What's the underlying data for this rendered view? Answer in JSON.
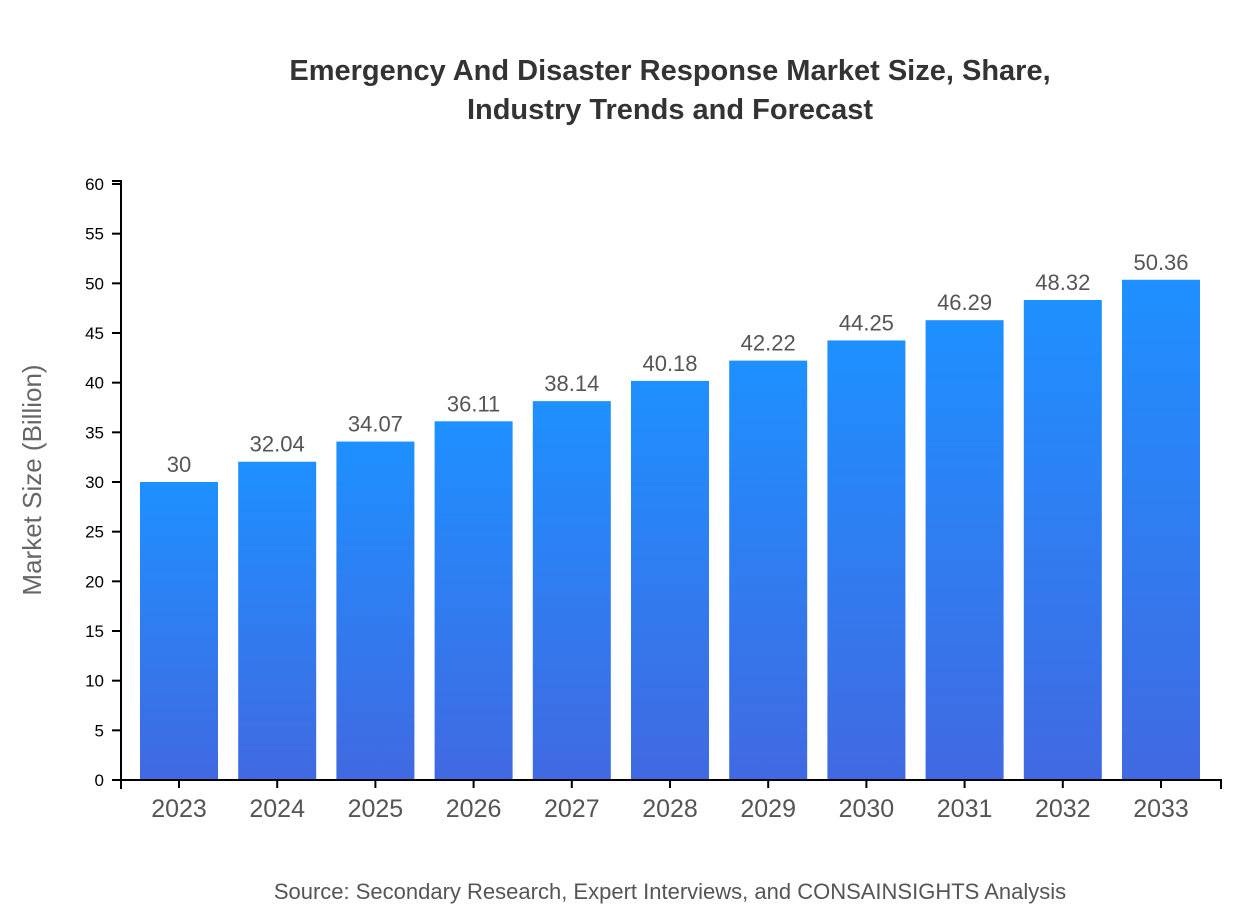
{
  "chart_data": {
    "type": "bar",
    "title_lines": [
      "Emergency And Disaster Response Market Size, Share,",
      "Industry Trends and Forecast"
    ],
    "xlabel": "",
    "ylabel": "Market Size (Billion)",
    "categories": [
      "2023",
      "2024",
      "2025",
      "2026",
      "2027",
      "2028",
      "2029",
      "2030",
      "2031",
      "2032",
      "2033"
    ],
    "values": [
      30,
      32.04,
      34.07,
      36.11,
      38.14,
      40.18,
      42.22,
      44.25,
      46.29,
      48.32,
      50.36
    ],
    "data_labels": [
      "30",
      "32.04",
      "34.07",
      "36.11",
      "38.14",
      "40.18",
      "42.22",
      "44.25",
      "46.29",
      "48.32",
      "50.36"
    ],
    "ylim": [
      0,
      60
    ],
    "yticks": [
      0,
      5,
      10,
      15,
      20,
      25,
      30,
      35,
      40,
      45,
      50,
      55,
      60
    ],
    "grid": false,
    "colors": {
      "bar_top": "#1e90ff",
      "bar_bottom": "#4169e1"
    },
    "source": "Source: Secondary Research, Expert Interviews, and CONSAINSIGHTS Analysis"
  }
}
